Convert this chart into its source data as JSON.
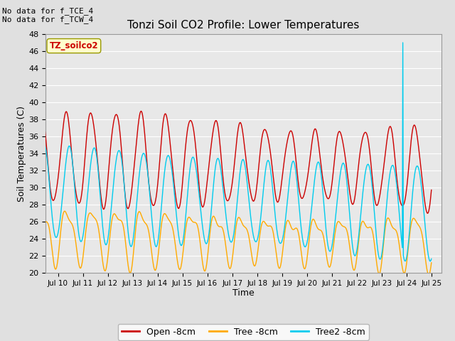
{
  "title": "Tonzi Soil CO2 Profile: Lower Temperatures",
  "xlabel": "Time",
  "ylabel": "Soil Temperatures (C)",
  "ylim": [
    20,
    48
  ],
  "yticks": [
    20,
    22,
    24,
    26,
    28,
    30,
    32,
    34,
    36,
    38,
    40,
    42,
    44,
    46,
    48
  ],
  "annotation_top": "No data for f_TCE_4\nNo data for f_TCW_4",
  "annotation_box": "TZ_soilco2",
  "open_color": "#cc0000",
  "tree_color": "#ffaa00",
  "tree2_color": "#00ccee",
  "legend_labels": [
    "Open -8cm",
    "Tree -8cm",
    "Tree2 -8cm"
  ],
  "xtick_labels": [
    "Jul 10",
    "Jul 11",
    "Jul 12",
    "Jul 13",
    "Jul 14",
    "Jul 15",
    "Jul 16",
    "Jul 17",
    "Jul 18",
    "Jul 19",
    "Jul 20",
    "Jul 21",
    "Jul 22",
    "Jul 23",
    "Jul 24",
    "Jul 25"
  ],
  "bg_color": "#e0e0e0",
  "plot_bg_color": "#e8e8e8"
}
